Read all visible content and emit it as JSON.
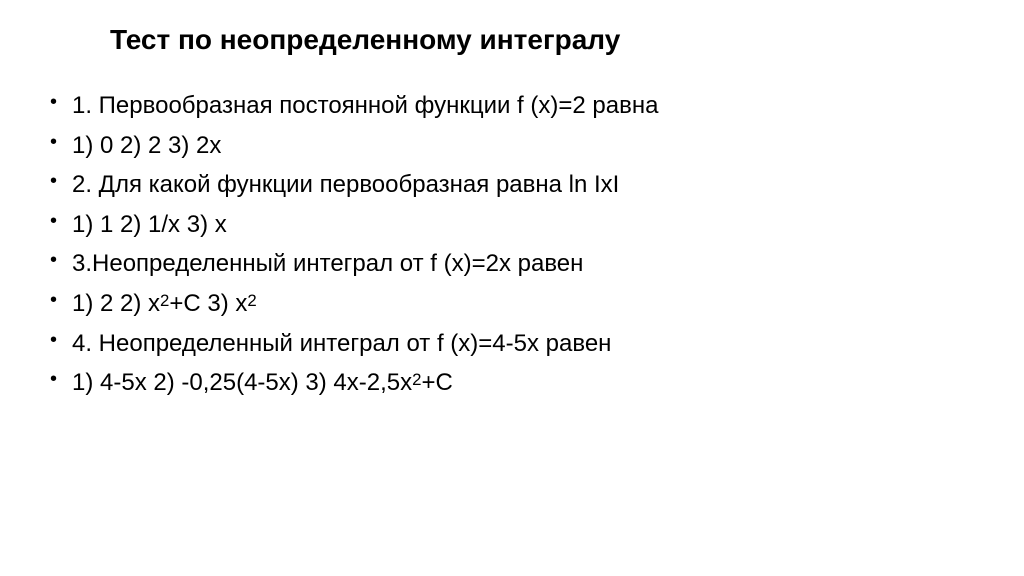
{
  "title": "Тест по неопределенному интегралу",
  "lines": {
    "q1": "1. Первообразная постоянной функции f (x)=2 равна",
    "a1_part1": "1)    0       2) 2             3) 2x",
    "q2": "2. Для какой функции первообразная равна ln IxI",
    "a2": "1)  1            2) 1/x                   3) x",
    "q3": "3.Неопределенный интеграл от f (x)=2x равен",
    "a3_p1": "1) 2             2) x",
    "a3_p2": "+C      3)  x",
    "q4": "4. Неопределенный интеграл от f (x)=4-5x равен",
    "a4_p1": "1)       4-5x             2)    -0,25(4-5x)             3)     4x-2,5x",
    "a4_p2": "+C"
  },
  "superscript": "2",
  "styling": {
    "background_color": "#ffffff",
    "text_color": "#000000",
    "title_fontsize": 28,
    "body_fontsize": 24,
    "font_family": "Arial",
    "title_weight": "bold",
    "line_height": 1.65
  }
}
